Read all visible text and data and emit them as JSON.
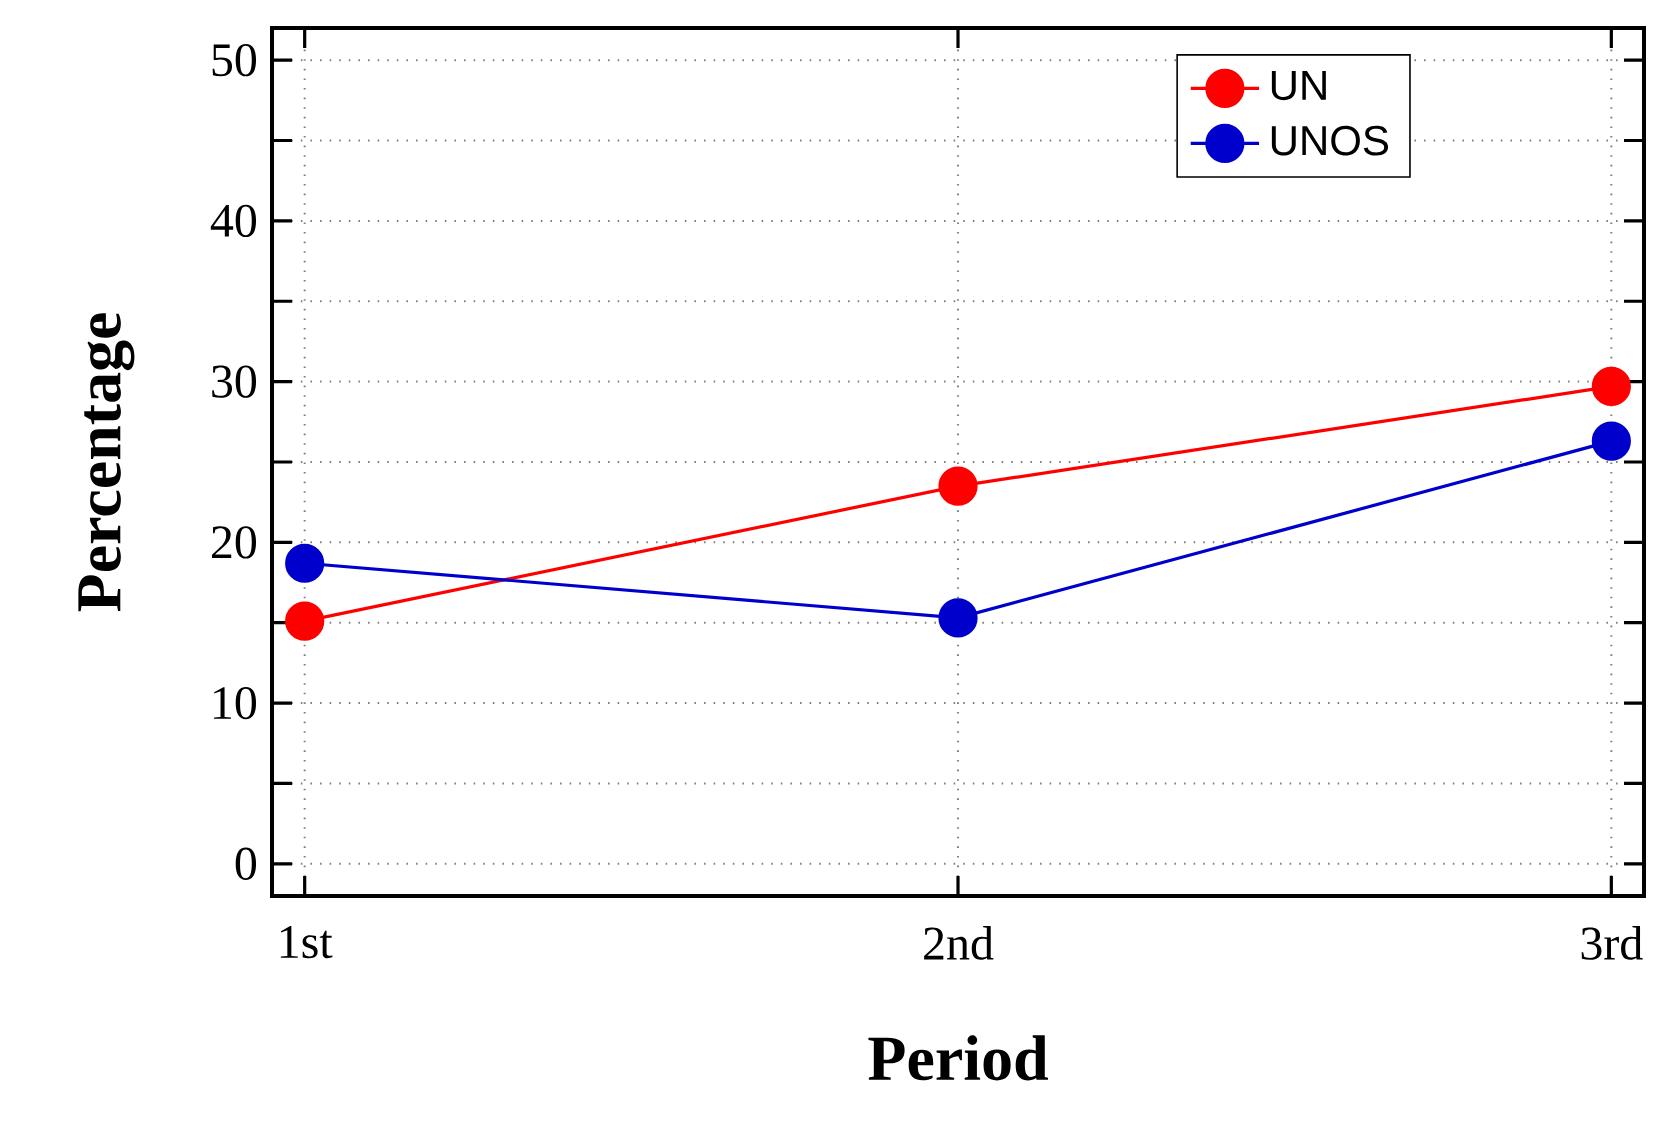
{
  "chart_data": {
    "type": "line",
    "xlabel": "Period",
    "ylabel": "Percentage",
    "categories": [
      "1st",
      "2nd",
      "3rd"
    ],
    "series": [
      {
        "name": "UN",
        "color": "#ff0000",
        "values": [
          15.1,
          23.5,
          29.7
        ]
      },
      {
        "name": "UNOS",
        "color": "#0000cc",
        "values": [
          18.7,
          15.3,
          26.3
        ]
      }
    ],
    "ylim": [
      -2,
      52
    ],
    "yticks": [
      0,
      {
        "value": 5,
        "label": null
      },
      10,
      {
        "value": 15,
        "label": null
      },
      20,
      {
        "value": 25,
        "label": null
      },
      30,
      {
        "value": 35,
        "label": null
      },
      40,
      {
        "value": 45,
        "label": null
      },
      50
    ],
    "grid": true,
    "legend": "top right",
    "marker": "circle",
    "line_style": "solid"
  }
}
